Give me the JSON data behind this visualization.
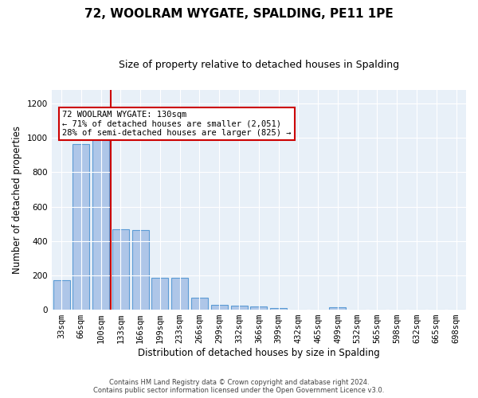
{
  "title": "72, WOOLRAM WYGATE, SPALDING, PE11 1PE",
  "subtitle": "Size of property relative to detached houses in Spalding",
  "xlabel": "Distribution of detached houses by size in Spalding",
  "ylabel": "Number of detached properties",
  "footer_line1": "Contains HM Land Registry data © Crown copyright and database right 2024.",
  "footer_line2": "Contains public sector information licensed under the Open Government Licence v3.0.",
  "bar_labels": [
    "33sqm",
    "66sqm",
    "100sqm",
    "133sqm",
    "166sqm",
    "199sqm",
    "233sqm",
    "266sqm",
    "299sqm",
    "332sqm",
    "366sqm",
    "399sqm",
    "432sqm",
    "465sqm",
    "499sqm",
    "532sqm",
    "565sqm",
    "598sqm",
    "632sqm",
    "665sqm",
    "698sqm"
  ],
  "bar_values": [
    170,
    965,
    990,
    470,
    465,
    185,
    185,
    70,
    28,
    22,
    18,
    10,
    0,
    0,
    12,
    0,
    0,
    0,
    0,
    0,
    0
  ],
  "bar_color": "#aec6e8",
  "bar_edge_color": "#5b9bd5",
  "marker_line_color": "#cc0000",
  "annotation_line1": "72 WOOLRAM WYGATE: 130sqm",
  "annotation_line2": "← 71% of detached houses are smaller (2,051)",
  "annotation_line3": "28% of semi-detached houses are larger (825) →",
  "annotation_box_facecolor": "#ffffff",
  "annotation_box_edgecolor": "#cc0000",
  "background_color": "#e8f0f8",
  "ylim": [
    0,
    1280
  ],
  "yticks": [
    0,
    200,
    400,
    600,
    800,
    1000,
    1200
  ],
  "title_fontsize": 11,
  "subtitle_fontsize": 9,
  "ylabel_fontsize": 8.5,
  "xlabel_fontsize": 8.5,
  "tick_fontsize": 7.5,
  "annotation_fontsize": 7.5,
  "footer_fontsize": 6
}
